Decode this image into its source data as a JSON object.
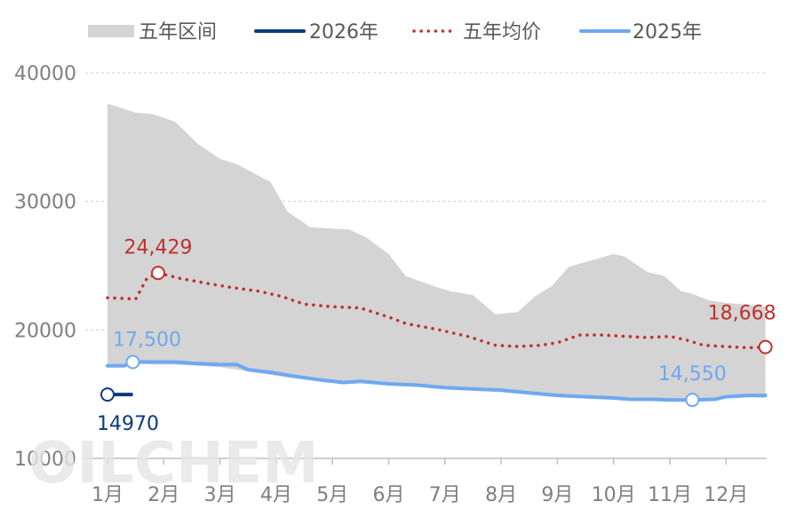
{
  "chart_data": {
    "type": "line",
    "title": "",
    "xlabel": "",
    "ylabel": "",
    "ylim": [
      10000,
      40000
    ],
    "y_ticks": [
      10000,
      20000,
      30000,
      40000
    ],
    "x_ticks": [
      "1月",
      "2月",
      "3月",
      "4月",
      "5月",
      "6月",
      "7月",
      "8月",
      "9月",
      "10月",
      "11月",
      "12月"
    ],
    "x_range": [
      1,
      12.7
    ],
    "grid": "horizontal dashed",
    "legend": {
      "position": "top",
      "items": [
        {
          "name": "五年区间",
          "color": "#d4d4d4",
          "style": "area"
        },
        {
          "name": "2026年",
          "color": "#0b3a7e",
          "style": "solid"
        },
        {
          "name": "五年均价",
          "color": "#c0312b",
          "style": "dotted"
        },
        {
          "name": "2025年",
          "color": "#6fa8f0",
          "style": "solid"
        }
      ]
    },
    "range_band": {
      "name": "五年区间",
      "x": [
        1.0,
        1.5,
        1.8,
        2.2,
        2.6,
        3.0,
        3.3,
        3.9,
        4.2,
        4.6,
        4.9,
        5.3,
        5.6,
        6.0,
        6.3,
        6.8,
        7.1,
        7.5,
        7.9,
        8.3,
        8.6,
        8.9,
        9.2,
        9.6,
        10.0,
        10.2,
        10.6,
        10.9,
        11.2,
        11.4,
        11.7,
        12.0,
        12.3,
        12.7
      ],
      "upper": [
        37600,
        36900,
        36800,
        36200,
        34500,
        33300,
        32900,
        31500,
        29200,
        28000,
        27900,
        27800,
        27200,
        25900,
        24200,
        23400,
        23000,
        22700,
        21200,
        21400,
        22600,
        23400,
        24900,
        25400,
        25900,
        25700,
        24500,
        24200,
        23000,
        22800,
        22300,
        22100,
        22000,
        21800
      ],
      "lower": [
        17200,
        17400,
        17300,
        17300,
        17200,
        17100,
        16900,
        16500,
        16300,
        16100,
        15900,
        15900,
        16000,
        15900,
        15800,
        15700,
        15600,
        15500,
        15400,
        15200,
        15000,
        14900,
        14800,
        14700,
        14600,
        14500,
        14500,
        14400,
        14400,
        14400,
        14500,
        14800,
        14800,
        14700
      ]
    },
    "series": [
      {
        "name": "2026年",
        "color": "#0b3a7e",
        "x": [
          1.0,
          1.45
        ],
        "values": [
          14970,
          14970
        ]
      },
      {
        "name": "五年均价",
        "color": "#c0312b",
        "x": [
          1.0,
          1.5,
          1.7,
          1.9,
          2.3,
          2.8,
          3.2,
          3.7,
          4.1,
          4.5,
          5.0,
          5.5,
          6.0,
          6.3,
          6.9,
          7.4,
          7.9,
          8.3,
          8.7,
          9.0,
          9.4,
          9.8,
          10.2,
          10.6,
          11.0,
          11.3,
          11.6,
          12.0,
          12.4,
          12.7
        ],
        "values": [
          22500,
          22400,
          24000,
          24429,
          24000,
          23600,
          23300,
          23000,
          22600,
          22000,
          21800,
          21700,
          21000,
          20500,
          20000,
          19500,
          18800,
          18700,
          18800,
          19000,
          19600,
          19600,
          19500,
          19400,
          19500,
          19200,
          18800,
          18700,
          18600,
          18668
        ]
      },
      {
        "name": "2025年",
        "color": "#6fa8f0",
        "x": [
          1.0,
          1.3,
          1.45,
          1.8,
          2.2,
          2.5,
          3.0,
          3.3,
          3.5,
          3.9,
          4.3,
          4.8,
          5.2,
          5.5,
          6.0,
          6.5,
          7.0,
          7.5,
          8.0,
          8.5,
          9.0,
          9.5,
          10.0,
          10.3,
          10.7,
          11.0,
          11.4,
          11.8,
          12.0,
          12.4,
          12.7
        ],
        "values": [
          17200,
          17200,
          17500,
          17500,
          17500,
          17400,
          17300,
          17300,
          16900,
          16700,
          16400,
          16100,
          15900,
          16000,
          15800,
          15700,
          15500,
          15400,
          15300,
          15100,
          14900,
          14800,
          14700,
          14600,
          14600,
          14550,
          14550,
          14600,
          14800,
          14900,
          14900
        ]
      }
    ],
    "annotations": [
      {
        "series": "五年均价",
        "x": 1.9,
        "y": 24429,
        "text": "24,429",
        "color": "#c0312b",
        "marker": true,
        "position": "above"
      },
      {
        "series": "五年均价",
        "x": 12.7,
        "y": 18668,
        "text": "18,668",
        "color": "#c0312b",
        "marker": true,
        "position": "above-left"
      },
      {
        "series": "2025年",
        "x": 1.45,
        "y": 17500,
        "text": "17,500",
        "color": "#6fa8f0",
        "marker": true,
        "position": "above"
      },
      {
        "series": "2025年",
        "x": 11.4,
        "y": 14550,
        "text": "14,550",
        "color": "#6fa8f0",
        "marker": true,
        "position": "above"
      },
      {
        "series": "2026年",
        "x": 1.0,
        "y": 14970,
        "text": "14970",
        "color": "#0b3a7e",
        "marker": true,
        "position": "below"
      }
    ]
  },
  "watermark": "OILCHEM"
}
